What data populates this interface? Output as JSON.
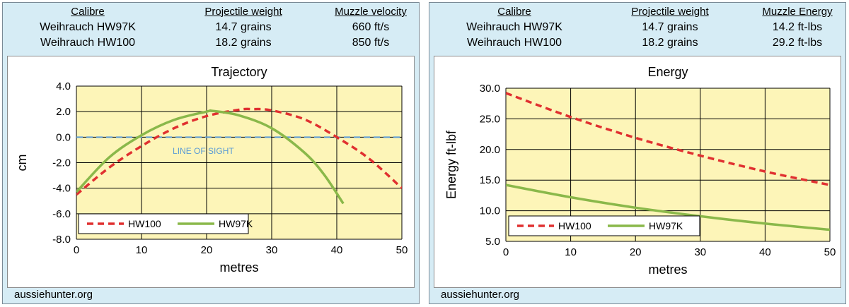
{
  "panels": [
    {
      "table": {
        "headers": [
          "Calibre",
          "Projectile weight",
          "Muzzle velocity"
        ],
        "rows": [
          [
            "Weihrauch HW97K",
            "14.7 grains",
            "660 ft/s"
          ],
          [
            "Weihrauch HW100",
            "18.2 grains",
            "850 ft/s"
          ]
        ]
      },
      "footer": "aussiehunter.org"
    },
    {
      "table": {
        "headers": [
          "Calibre",
          "Projectile weight",
          "Muzzle Energy"
        ],
        "rows": [
          [
            "Weihrauch HW97K",
            "14.7 grains",
            "14.2 ft-lbs"
          ],
          [
            "Weihrauch HW100",
            "18.2 grains",
            "29.2 ft-lbs"
          ]
        ]
      },
      "footer": "aussiehunter.org"
    }
  ],
  "colors": {
    "plot_bg": "#fdf5b8",
    "grid": "#000000",
    "hw100": "#e03030",
    "hw97k": "#8ab84a",
    "line_of_sight": "#5b9bd5"
  },
  "chart_data": [
    {
      "type": "line",
      "title": "Trajectory",
      "xlabel": "metres",
      "ylabel": "cm",
      "xlim": [
        0,
        50
      ],
      "ylim": [
        -8,
        4
      ],
      "xticks": [
        "0",
        "10",
        "20",
        "30",
        "40",
        "50"
      ],
      "yticks": [
        "-8.0",
        "-6.0",
        "-4.0",
        "-2.0",
        "0.0",
        "2.0",
        "4.0"
      ],
      "grid": true,
      "legend_position": "bottom-left",
      "annotation": "LINE OF SIGHT",
      "reference_line": {
        "y": 0,
        "style": "dashed"
      },
      "series": [
        {
          "name": "HW100",
          "style": "dashed",
          "x": [
            0,
            5,
            10,
            15,
            20,
            25,
            27,
            30,
            35,
            40,
            45,
            50
          ],
          "y": [
            -4.5,
            -2.4,
            -0.7,
            0.7,
            1.65,
            2.15,
            2.2,
            2.1,
            1.4,
            0.0,
            -1.7,
            -4.0
          ]
        },
        {
          "name": "HW97K",
          "style": "solid",
          "x": [
            0,
            5,
            10,
            15,
            20,
            21,
            25,
            30,
            35,
            38,
            41
          ],
          "y": [
            -4.3,
            -1.6,
            0.15,
            1.35,
            2.0,
            2.05,
            1.7,
            0.7,
            -1.2,
            -2.9,
            -5.2
          ]
        }
      ]
    },
    {
      "type": "line",
      "title": "Energy",
      "xlabel": "metres",
      "ylabel": "Energy ft-lbf",
      "xlim": [
        0,
        50
      ],
      "ylim": [
        5,
        30
      ],
      "xticks": [
        "0",
        "10",
        "20",
        "30",
        "40",
        "50"
      ],
      "yticks": [
        "5.0",
        "10.0",
        "15.0",
        "20.0",
        "25.0",
        "30.0"
      ],
      "grid": true,
      "legend_position": "bottom-left",
      "series": [
        {
          "name": "HW100",
          "style": "dashed",
          "x": [
            0,
            10,
            20,
            30,
            40,
            50
          ],
          "y": [
            29.2,
            25.3,
            21.9,
            19.0,
            16.4,
            14.2
          ]
        },
        {
          "name": "HW97K",
          "style": "solid",
          "x": [
            0,
            10,
            20,
            30,
            40,
            50
          ],
          "y": [
            14.2,
            12.2,
            10.5,
            9.1,
            7.9,
            6.9
          ]
        }
      ]
    }
  ]
}
